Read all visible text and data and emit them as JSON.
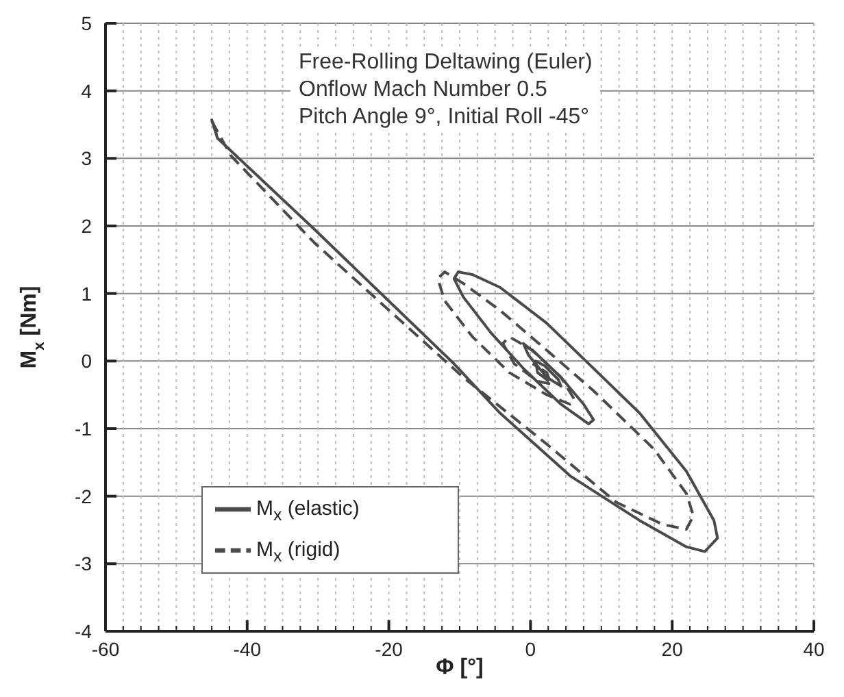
{
  "chart_data": {
    "type": "line",
    "xlabel": "Φ [°]",
    "ylabel": "M$_{x}$ [Nm]",
    "annotations": [
      "Free-Rolling Deltawing (Euler)",
      "Onflow Mach Number 0.5",
      "Pitch Angle 9°, Initial Roll -45°"
    ],
    "xlim": [
      -60,
      40
    ],
    "ylim": [
      -4,
      5
    ],
    "xticks": [
      -60,
      {
        "value": -57.5,
        "label": null
      },
      {
        "value": -55,
        "label": null
      },
      {
        "value": -52.5,
        "label": null
      },
      {
        "value": -50,
        "label": null
      },
      {
        "value": -47.5,
        "label": null
      },
      {
        "value": -45,
        "label": null
      },
      {
        "value": -42.5,
        "label": null
      },
      -40,
      {
        "value": -37.5,
        "label": null
      },
      {
        "value": -35,
        "label": null
      },
      {
        "value": -32.5,
        "label": null
      },
      {
        "value": -30,
        "label": null
      },
      {
        "value": -27.5,
        "label": null
      },
      {
        "value": -25,
        "label": null
      },
      {
        "value": -22.5,
        "label": null
      },
      -20,
      {
        "value": -17.5,
        "label": null
      },
      {
        "value": -15,
        "label": null
      },
      {
        "value": -12.5,
        "label": null
      },
      {
        "value": -10,
        "label": null
      },
      {
        "value": -7.5,
        "label": null
      },
      {
        "value": -5,
        "label": null
      },
      {
        "value": -2.5,
        "label": null
      },
      0,
      {
        "value": 2.5,
        "label": null
      },
      {
        "value": 5,
        "label": null
      },
      {
        "value": 7.5,
        "label": null
      },
      {
        "value": 10,
        "label": null
      },
      {
        "value": 12.5,
        "label": null
      },
      {
        "value": 15,
        "label": null
      },
      {
        "value": 17.5,
        "label": null
      },
      20,
      {
        "value": 22.5,
        "label": null
      },
      {
        "value": 25,
        "label": null
      },
      {
        "value": 27.5,
        "label": null
      },
      {
        "value": 30,
        "label": null
      },
      {
        "value": 32.5,
        "label": null
      },
      {
        "value": 35,
        "label": null
      },
      {
        "value": 37.5,
        "label": null
      },
      40
    ],
    "yticks": [
      -4,
      -3,
      -2,
      -1,
      0,
      1,
      2,
      3,
      4,
      5
    ],
    "grid": true,
    "legend": "bottom left",
    "series": [
      {
        "name": "M$_{x}$ (rigid)",
        "color": "#4a4a4a",
        "line_style": "dashed",
        "x": [
          -45,
          -42.3,
          -30.5,
          -20.7,
          -9.5,
          2.3,
          12.1,
          18.7,
          22,
          23,
          22,
          17.4,
          8.9,
          2.3,
          -4.3,
          -9.5,
          -12.1,
          -13.1,
          -12.1,
          -8.2,
          -3,
          2.3,
          5.6,
          6.2,
          4.3,
          0.3,
          -3,
          -3.9,
          -2.3,
          1,
          2.9,
          2.3,
          0.3
        ],
        "values": [
          3.55,
          3.04,
          1.75,
          0.82,
          -0.24,
          -1.23,
          -2.09,
          -2.42,
          -2.49,
          -2.29,
          -1.96,
          -1.3,
          -0.44,
          0.16,
          0.75,
          1.15,
          1.32,
          1.22,
          0.89,
          0.36,
          -0.17,
          -0.5,
          -0.64,
          -0.57,
          -0.24,
          0.16,
          0.36,
          0.26,
          -0.04,
          -0.3,
          -0.34,
          -0.17,
          -0.04
        ]
      },
      {
        "name": "M$_{x}$ (elastic)",
        "color": "#4a4a4a",
        "line_style": "solid",
        "x": [
          -44.3,
          -45,
          -44.2,
          -30.5,
          -21.3,
          -10.8,
          -4.3,
          5.6,
          15.4,
          22,
          24.6,
          26.4,
          25.9,
          22,
          15.4,
          8.9,
          2.3,
          -4.3,
          -8.2,
          -10.2,
          -10.8,
          -9.5,
          -5.6,
          -1,
          4.3,
          8.2,
          8.9,
          7.5,
          4.3,
          1,
          -1,
          -0.3,
          2.3,
          4.3,
          3.9,
          2,
          0.7,
          1,
          2.6
        ],
        "values": [
          3.35,
          3.57,
          3.3,
          1.95,
          1.02,
          -0.04,
          -0.77,
          -1.7,
          -2.36,
          -2.75,
          -2.82,
          -2.62,
          -2.36,
          -1.63,
          -0.77,
          -0.11,
          0.56,
          1.09,
          1.28,
          1.32,
          1.22,
          0.95,
          0.42,
          -0.11,
          -0.64,
          -0.93,
          -0.87,
          -0.64,
          -0.24,
          0.09,
          0.26,
          0.09,
          -0.24,
          -0.37,
          -0.27,
          -0.07,
          0,
          -0.17,
          -0.3
        ]
      }
    ]
  }
}
